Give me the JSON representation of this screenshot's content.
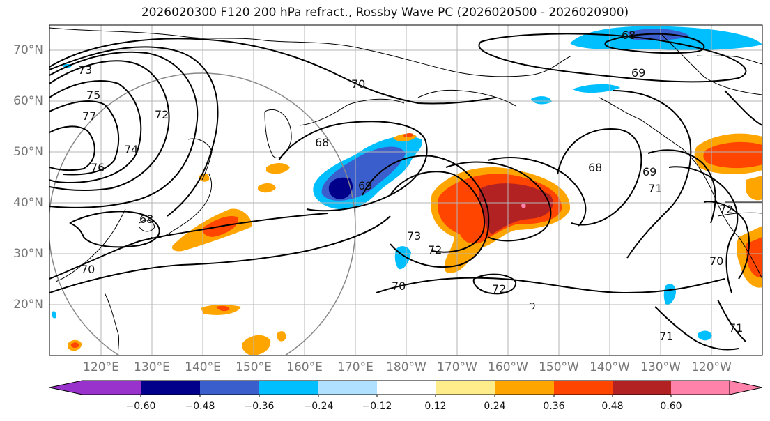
{
  "title": "2026020300 F120 200 hPa refract., Rossby Wave PC (2026020500 - 2026020900)",
  "lat_labels": [
    "70°N",
    "60°N",
    "50°N",
    "40°N",
    "30°N",
    "20°N"
  ],
  "lon_labels": [
    "120°E",
    "130°E",
    "140°E",
    "150°E",
    "160°E",
    "170°E",
    "180°W",
    "170°W",
    "160°W",
    "150°W",
    "140°W",
    "130°W",
    "120°W"
  ],
  "colorbar": {
    "ticks": [
      "−0.60",
      "−0.48",
      "−0.36",
      "−0.24",
      "−0.12",
      "0.12",
      "0.24",
      "0.36",
      "0.48",
      "0.60"
    ],
    "colors": [
      "#9932cc",
      "#00008b",
      "#3a5fcd",
      "#00bfff",
      "#b0e2ff",
      "#ffffff",
      "#ffec8b",
      "#ffa500",
      "#ff4500",
      "#b22222",
      "#ff82ab"
    ]
  },
  "contour_labels": [
    "73",
    "75",
    "77",
    "74",
    "76",
    "72",
    "70",
    "68",
    "69",
    "70",
    "68",
    "73",
    "72",
    "70",
    "72",
    "68",
    "69",
    "71",
    "72",
    "70",
    "71",
    "71",
    "69",
    "68"
  ]
}
